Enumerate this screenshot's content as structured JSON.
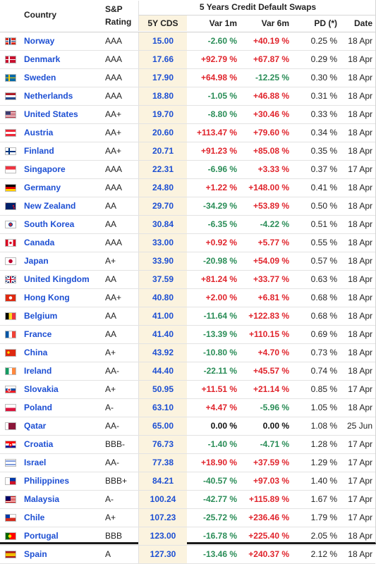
{
  "header": {
    "country": "Country",
    "sp_line1": "S&P",
    "sp_line2": "Rating",
    "group": "5 Years Credit Default Swaps",
    "cds": "5Y CDS",
    "var1m": "Var 1m",
    "var6m": "Var 6m",
    "pd": "PD (*)",
    "date": "Date"
  },
  "rows": [
    {
      "country": "Norway",
      "rating": "AAA",
      "cds": "15.00",
      "var1m": "-2.60 %",
      "var6m": "+40.19 %",
      "pd": "0.25 %",
      "date": "18 Apr",
      "flag": "norway-flag-icon"
    },
    {
      "country": "Denmark",
      "rating": "AAA",
      "cds": "17.66",
      "var1m": "+92.79 %",
      "var6m": "+67.87 %",
      "pd": "0.29 %",
      "date": "18 Apr",
      "flag": "denmark-flag-icon"
    },
    {
      "country": "Sweden",
      "rating": "AAA",
      "cds": "17.90",
      "var1m": "+64.98 %",
      "var6m": "-12.25 %",
      "pd": "0.30 %",
      "date": "18 Apr",
      "flag": "sweden-flag-icon"
    },
    {
      "country": "Netherlands",
      "rating": "AAA",
      "cds": "18.80",
      "var1m": "-1.05 %",
      "var6m": "+46.88 %",
      "pd": "0.31 %",
      "date": "18 Apr",
      "flag": "netherlands-flag-icon"
    },
    {
      "country": "United States",
      "rating": "AA+",
      "cds": "19.70",
      "var1m": "-8.80 %",
      "var6m": "+30.46 %",
      "pd": "0.33 %",
      "date": "18 Apr",
      "flag": "united-states-flag-icon"
    },
    {
      "country": "Austria",
      "rating": "AA+",
      "cds": "20.60",
      "var1m": "+113.47 %",
      "var6m": "+79.60 %",
      "pd": "0.34 %",
      "date": "18 Apr",
      "flag": "austria-flag-icon"
    },
    {
      "country": "Finland",
      "rating": "AA+",
      "cds": "20.71",
      "var1m": "+91.23 %",
      "var6m": "+85.08 %",
      "pd": "0.35 %",
      "date": "18 Apr",
      "flag": "finland-flag-icon"
    },
    {
      "country": "Singapore",
      "rating": "AAA",
      "cds": "22.31",
      "var1m": "-6.96 %",
      "var6m": "+3.33 %",
      "pd": "0.37 %",
      "date": "17 Apr",
      "flag": "singapore-flag-icon"
    },
    {
      "country": "Germany",
      "rating": "AAA",
      "cds": "24.80",
      "var1m": "+1.22 %",
      "var6m": "+148.00 %",
      "pd": "0.41 %",
      "date": "18 Apr",
      "flag": "germany-flag-icon"
    },
    {
      "country": "New Zealand",
      "rating": "AA",
      "cds": "29.70",
      "var1m": "-34.29 %",
      "var6m": "+53.89 %",
      "pd": "0.50 %",
      "date": "18 Apr",
      "flag": "new-zealand-flag-icon"
    },
    {
      "country": "South Korea",
      "rating": "AA",
      "cds": "30.84",
      "var1m": "-6.35 %",
      "var6m": "-4.22 %",
      "pd": "0.51 %",
      "date": "18 Apr",
      "flag": "south-korea-flag-icon"
    },
    {
      "country": "Canada",
      "rating": "AAA",
      "cds": "33.00",
      "var1m": "+0.92 %",
      "var6m": "+5.77 %",
      "pd": "0.55 %",
      "date": "18 Apr",
      "flag": "canada-flag-icon"
    },
    {
      "country": "Japan",
      "rating": "A+",
      "cds": "33.90",
      "var1m": "-20.98 %",
      "var6m": "+54.09 %",
      "pd": "0.57 %",
      "date": "18 Apr",
      "flag": "japan-flag-icon"
    },
    {
      "country": "United Kingdom",
      "rating": "AA",
      "cds": "37.59",
      "var1m": "+81.24 %",
      "var6m": "+33.77 %",
      "pd": "0.63 %",
      "date": "18 Apr",
      "flag": "united-kingdom-flag-icon"
    },
    {
      "country": "Hong Kong",
      "rating": "AA+",
      "cds": "40.80",
      "var1m": "+2.00 %",
      "var6m": "+6.81 %",
      "pd": "0.68 %",
      "date": "18 Apr",
      "flag": "hong-kong-flag-icon"
    },
    {
      "country": "Belgium",
      "rating": "AA",
      "cds": "41.00",
      "var1m": "-11.64 %",
      "var6m": "+122.83 %",
      "pd": "0.68 %",
      "date": "18 Apr",
      "flag": "belgium-flag-icon"
    },
    {
      "country": "France",
      "rating": "AA",
      "cds": "41.40",
      "var1m": "-13.39 %",
      "var6m": "+110.15 %",
      "pd": "0.69 %",
      "date": "18 Apr",
      "flag": "france-flag-icon"
    },
    {
      "country": "China",
      "rating": "A+",
      "cds": "43.92",
      "var1m": "-10.80 %",
      "var6m": "+4.70 %",
      "pd": "0.73 %",
      "date": "18 Apr",
      "flag": "china-flag-icon"
    },
    {
      "country": "Ireland",
      "rating": "AA-",
      "cds": "44.40",
      "var1m": "-22.11 %",
      "var6m": "+45.57 %",
      "pd": "0.74 %",
      "date": "18 Apr",
      "flag": "ireland-flag-icon"
    },
    {
      "country": "Slovakia",
      "rating": "A+",
      "cds": "50.95",
      "var1m": "+11.51 %",
      "var6m": "+21.14 %",
      "pd": "0.85 %",
      "date": "17 Apr",
      "flag": "slovakia-flag-icon"
    },
    {
      "country": "Poland",
      "rating": "A-",
      "cds": "63.10",
      "var1m": "+4.47 %",
      "var6m": "-5.96 %",
      "pd": "1.05 %",
      "date": "18 Apr",
      "flag": "poland-flag-icon"
    },
    {
      "country": "Qatar",
      "rating": "AA-",
      "cds": "65.00",
      "var1m": "0.00 %",
      "var6m": "0.00 %",
      "pd": "1.08 %",
      "date": "25 Jun",
      "flag": "qatar-flag-icon"
    },
    {
      "country": "Croatia",
      "rating": "BBB-",
      "cds": "76.73",
      "var1m": "-1.40 %",
      "var6m": "-4.71 %",
      "pd": "1.28 %",
      "date": "17 Apr",
      "flag": "croatia-flag-icon"
    },
    {
      "country": "Israel",
      "rating": "AA-",
      "cds": "77.38",
      "var1m": "+18.90 %",
      "var6m": "+37.59 %",
      "pd": "1.29 %",
      "date": "17 Apr",
      "flag": "israel-flag-icon"
    },
    {
      "country": "Philippines",
      "rating": "BBB+",
      "cds": "84.21",
      "var1m": "-40.57 %",
      "var6m": "+97.03 %",
      "pd": "1.40 %",
      "date": "17 Apr",
      "flag": "philippines-flag-icon"
    },
    {
      "country": "Malaysia",
      "rating": "A-",
      "cds": "100.24",
      "var1m": "-42.77 %",
      "var6m": "+115.89 %",
      "pd": "1.67 %",
      "date": "17 Apr",
      "flag": "malaysia-flag-icon"
    },
    {
      "country": "Chile",
      "rating": "A+",
      "cds": "107.23",
      "var1m": "-25.72 %",
      "var6m": "+236.46 %",
      "pd": "1.79 %",
      "date": "17 Apr",
      "flag": "chile-flag-icon"
    },
    {
      "country": "Portugal",
      "rating": "BBB",
      "cds": "123.00",
      "var1m": "-16.78 %",
      "var6m": "+225.40 %",
      "pd": "2.05 %",
      "date": "18 Apr",
      "flag": "portugal-flag-icon"
    },
    {
      "country": "Spain",
      "rating": "A",
      "cds": "127.30",
      "var1m": "-13.46 %",
      "var6m": "+240.37 %",
      "pd": "2.12 %",
      "date": "18 Apr",
      "flag": "spain-flag-icon"
    }
  ],
  "colors": {
    "link": "#1d4fd3",
    "positive": "#e0242c",
    "negative": "#2a8d57",
    "cds_bg": "#fbf3df"
  }
}
